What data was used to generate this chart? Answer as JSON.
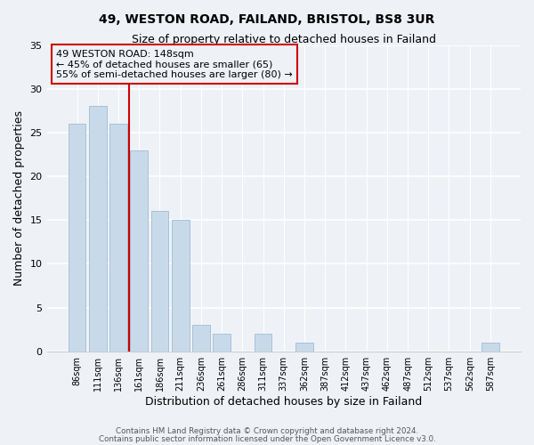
{
  "title": "49, WESTON ROAD, FAILAND, BRISTOL, BS8 3UR",
  "subtitle": "Size of property relative to detached houses in Failand",
  "xlabel": "Distribution of detached houses by size in Failand",
  "ylabel": "Number of detached properties",
  "bar_labels": [
    "86sqm",
    "111sqm",
    "136sqm",
    "161sqm",
    "186sqm",
    "211sqm",
    "236sqm",
    "261sqm",
    "286sqm",
    "311sqm",
    "337sqm",
    "362sqm",
    "387sqm",
    "412sqm",
    "437sqm",
    "462sqm",
    "487sqm",
    "512sqm",
    "537sqm",
    "562sqm",
    "587sqm"
  ],
  "bar_values": [
    26,
    28,
    26,
    23,
    16,
    15,
    3,
    2,
    0,
    2,
    0,
    1,
    0,
    0,
    0,
    0,
    0,
    0,
    0,
    0,
    1
  ],
  "bar_color": "#c8daea",
  "bar_edge_color": "#a8c0d8",
  "vline_x": 2.5,
  "vline_color": "#cc0000",
  "ylim": [
    0,
    35
  ],
  "yticks": [
    0,
    5,
    10,
    15,
    20,
    25,
    30,
    35
  ],
  "annotation_title": "49 WESTON ROAD: 148sqm",
  "annotation_line1": "← 45% of detached houses are smaller (65)",
  "annotation_line2": "55% of semi-detached houses are larger (80) →",
  "footer1": "Contains HM Land Registry data © Crown copyright and database right 2024.",
  "footer2": "Contains public sector information licensed under the Open Government Licence v3.0.",
  "background_color": "#eef2f7",
  "title_fontsize": 10,
  "subtitle_fontsize": 9
}
